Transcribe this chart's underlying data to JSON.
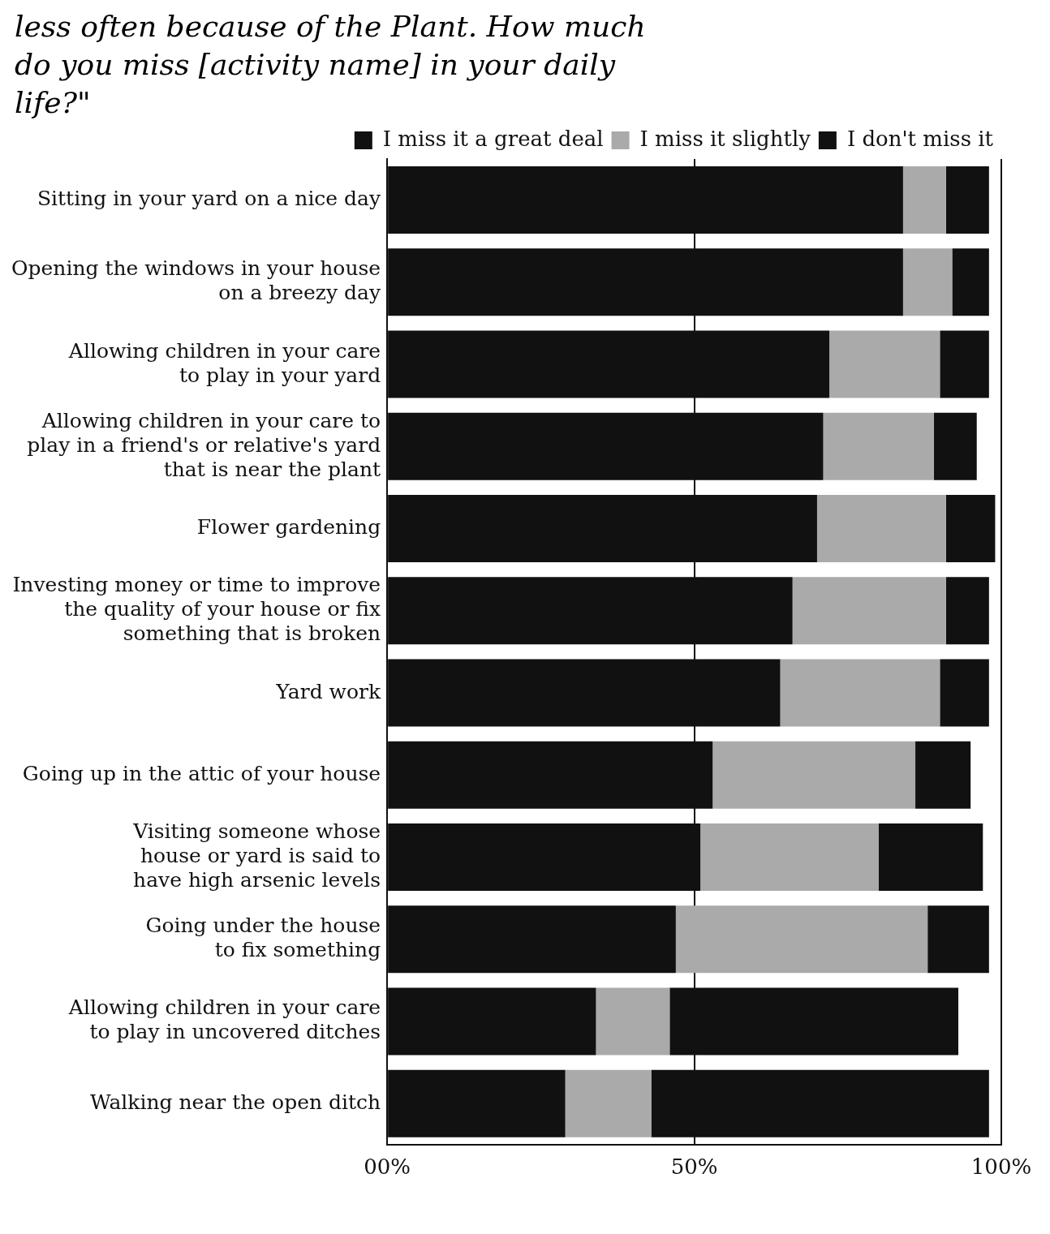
{
  "chart_data": {
    "type": "bar",
    "orientation": "horizontal",
    "stacked": true,
    "title": "less often because of the Plant. How much do you miss [activity name] in your daily life?\"",
    "categories": [
      "Sitting in your yard on a nice day",
      "Opening the windows in your house\non a breezy day",
      "Allowing children in your care\nto play in your yard",
      "Allowing children in your care to\nplay in a friend's or relative's yard\nthat is near the plant",
      "Flower gardening",
      "Investing money or time to improve\nthe quality of your house or fix\nsomething that is broken",
      "Yard work",
      "Going up in the attic of your house",
      "Visiting someone whose\nhouse or yard is said to\nhave high arsenic levels",
      "Going under the house\nto fix something",
      "Allowing children in your care\nto play in uncovered ditches",
      "Walking near the open ditch"
    ],
    "series": [
      {
        "name": "I miss it a great deal",
        "color": "#111111",
        "values": [
          84,
          84,
          72,
          71,
          70,
          66,
          64,
          53,
          51,
          47,
          34,
          29
        ]
      },
      {
        "name": "I miss it slightly",
        "color": "#aaaaaa",
        "values": [
          7,
          8,
          18,
          18,
          21,
          25,
          26,
          33,
          29,
          41,
          12,
          14
        ]
      },
      {
        "name": "I don't miss it",
        "color": "#111111",
        "values": [
          7,
          6,
          8,
          7,
          8,
          7,
          8,
          9,
          17,
          10,
          47,
          55
        ]
      }
    ],
    "xlim": [
      0,
      100
    ],
    "xticks": [
      {
        "value": 0,
        "label": "00%"
      },
      {
        "value": 50,
        "label": "50%"
      },
      {
        "value": 100,
        "label": "100%"
      }
    ],
    "grid": "x",
    "legend": "top right"
  }
}
